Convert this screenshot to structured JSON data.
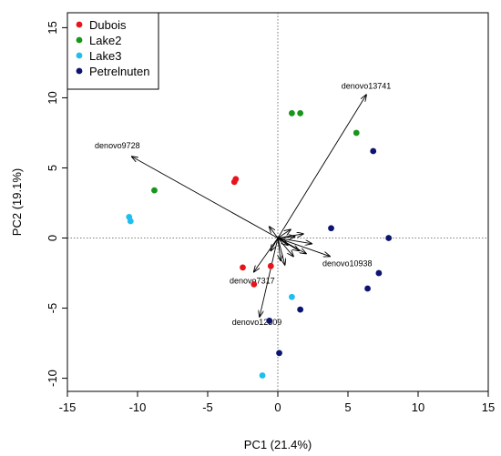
{
  "chart_data": {
    "type": "scatter",
    "title": "",
    "xlabel": "PC1 (21.4%)",
    "ylabel": "PC2 (19.1%)",
    "xlim": [
      -15,
      15
    ],
    "ylim": [
      -11,
      16
    ],
    "xticks": [
      -15,
      -10,
      -5,
      0,
      5,
      10,
      15
    ],
    "yticks": [
      -10,
      -5,
      0,
      5,
      10,
      15
    ],
    "grid": false,
    "reference_lines": {
      "x": 0,
      "y": 0,
      "style": "dotted"
    },
    "legend": {
      "placement": "top-left",
      "entries": [
        "Dubois",
        "Lake2",
        "Lake3",
        "Petrelnuten"
      ]
    },
    "series": [
      {
        "name": "Dubois",
        "color": "#e8141c",
        "points": [
          [
            -3.0,
            4.2
          ],
          [
            -3.1,
            4.0
          ],
          [
            -0.5,
            -2.0
          ],
          [
            -2.5,
            -2.1
          ],
          [
            -1.7,
            -3.3
          ]
        ]
      },
      {
        "name": "Lake2",
        "color": "#17961c",
        "points": [
          [
            1.0,
            8.9
          ],
          [
            1.6,
            8.9
          ],
          [
            5.6,
            7.5
          ],
          [
            -8.8,
            3.4
          ]
        ]
      },
      {
        "name": "Lake3",
        "color": "#1ebeee",
        "points": [
          [
            -10.6,
            1.5
          ],
          [
            -10.5,
            1.2
          ],
          [
            1.0,
            -4.2
          ],
          [
            -1.1,
            -9.8
          ]
        ]
      },
      {
        "name": "Petrelnuten",
        "color": "#0c1470",
        "points": [
          [
            6.8,
            6.2
          ],
          [
            3.8,
            0.7
          ],
          [
            7.9,
            0.0
          ],
          [
            7.2,
            -2.5
          ],
          [
            6.4,
            -3.6
          ],
          [
            1.6,
            -5.1
          ],
          [
            -0.6,
            -5.9
          ],
          [
            0.1,
            -8.2
          ]
        ]
      }
    ],
    "loadings": [
      {
        "label": "denovo13741",
        "x": 6.3,
        "y": 10.2
      },
      {
        "label": "denovo9728",
        "x": -10.4,
        "y": 5.8
      },
      {
        "label": "denovo10938",
        "x": 3.7,
        "y": -1.3
      },
      {
        "label": "denovo7317",
        "x": -1.7,
        "y": -2.4
      },
      {
        "label": "denovo12309",
        "x": -1.3,
        "y": -5.6
      },
      {
        "label": "",
        "x": 2.4,
        "y": -0.4
      },
      {
        "label": "",
        "x": 2.0,
        "y": -1.1
      },
      {
        "label": "",
        "x": 1.5,
        "y": -0.9
      },
      {
        "label": "",
        "x": 1.1,
        "y": -1.3
      },
      {
        "label": "",
        "x": 1.8,
        "y": 0.3
      },
      {
        "label": "",
        "x": 0.9,
        "y": 0.6
      },
      {
        "label": "",
        "x": -0.6,
        "y": 0.8
      },
      {
        "label": "",
        "x": -0.5,
        "y": -0.9
      },
      {
        "label": "",
        "x": 0.2,
        "y": -1.6
      },
      {
        "label": "",
        "x": 0.5,
        "y": -1.9
      },
      {
        "label": "",
        "x": 1.2,
        "y": 0.1
      },
      {
        "label": "",
        "x": 0.7,
        "y": -0.5
      }
    ]
  }
}
